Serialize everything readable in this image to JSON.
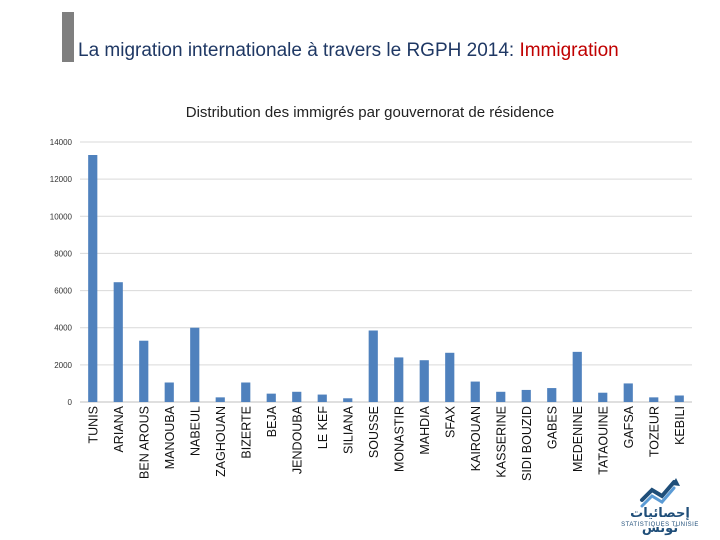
{
  "slide": {
    "title_main": "La migration internationale à travers le RGPH 2014: ",
    "title_accent": "Immigration"
  },
  "logo": {
    "arabic_text": "إحصائيات تونس",
    "latin_text": "STATISTIQUES TUNISIE"
  },
  "colors": {
    "bar": "#4f81bd",
    "title": "#1f3864",
    "accent": "#c00000",
    "grid": "#d9d9d9"
  },
  "chart_data": {
    "type": "bar",
    "title": "Distribution des immigrés par gouvernorat de résidence",
    "xlabel": "",
    "ylabel": "",
    "ylim": [
      0,
      14000
    ],
    "yticks": [
      0,
      2000,
      4000,
      6000,
      8000,
      10000,
      12000,
      14000
    ],
    "grid": true,
    "categories": [
      "TUNIS",
      "ARIANA",
      "BEN AROUS",
      "MANOUBA",
      "NABEUL",
      "ZAGHOUAN",
      "BIZERTE",
      "BEJA",
      "JENDOUBA",
      "LE KEF",
      "SILIANA",
      "SOUSSE",
      "MONASTIR",
      "MAHDIA",
      "SFAX",
      "KAIROUAN",
      "KASSERINE",
      "SIDI BOUZID",
      "GABES",
      "MEDENINE",
      "TATAOUINE",
      "GAFSA",
      "TOZEUR",
      "KEBILI"
    ],
    "values": [
      13300,
      6450,
      3300,
      1050,
      4000,
      250,
      1050,
      450,
      550,
      400,
      200,
      3850,
      2400,
      2250,
      2650,
      1100,
      550,
      650,
      750,
      2700,
      500,
      1000,
      250,
      350
    ]
  }
}
